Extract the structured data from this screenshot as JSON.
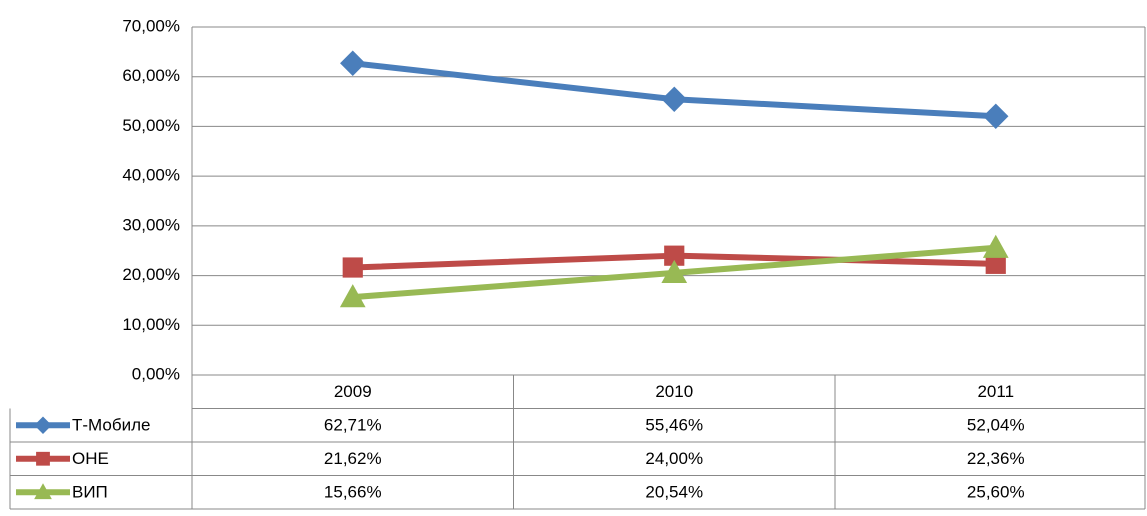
{
  "chart_data": {
    "type": "line",
    "categories": [
      "2009",
      "2010",
      "2011"
    ],
    "series": [
      {
        "name": "Т-Мобиле",
        "color": "#4a7ebb",
        "marker": "diamond",
        "values": [
          62.71,
          55.46,
          52.04
        ],
        "value_labels": [
          "62,71%",
          "55,46%",
          "52,04%"
        ]
      },
      {
        "name": "ОНЕ",
        "color": "#be4b48",
        "marker": "square",
        "values": [
          21.62,
          24.0,
          22.36
        ],
        "value_labels": [
          "21,62%",
          "24,00%",
          "22,36%"
        ]
      },
      {
        "name": "ВИП",
        "color": "#98b954",
        "marker": "triangle",
        "values": [
          15.66,
          20.54,
          25.6
        ],
        "value_labels": [
          "15,66%",
          "20,54%",
          "25,60%"
        ]
      }
    ],
    "ylim": [
      0,
      70
    ],
    "yticks": [
      {
        "value": 0,
        "label": "0,00%"
      },
      {
        "value": 10,
        "label": "10,00%"
      },
      {
        "value": 20,
        "label": "20,00%"
      },
      {
        "value": 30,
        "label": "30,00%"
      },
      {
        "value": 40,
        "label": "40,00%"
      },
      {
        "value": 50,
        "label": "50,00%"
      },
      {
        "value": 60,
        "label": "60,00%"
      },
      {
        "value": 70,
        "label": "70,00%"
      }
    ],
    "grid": true
  }
}
